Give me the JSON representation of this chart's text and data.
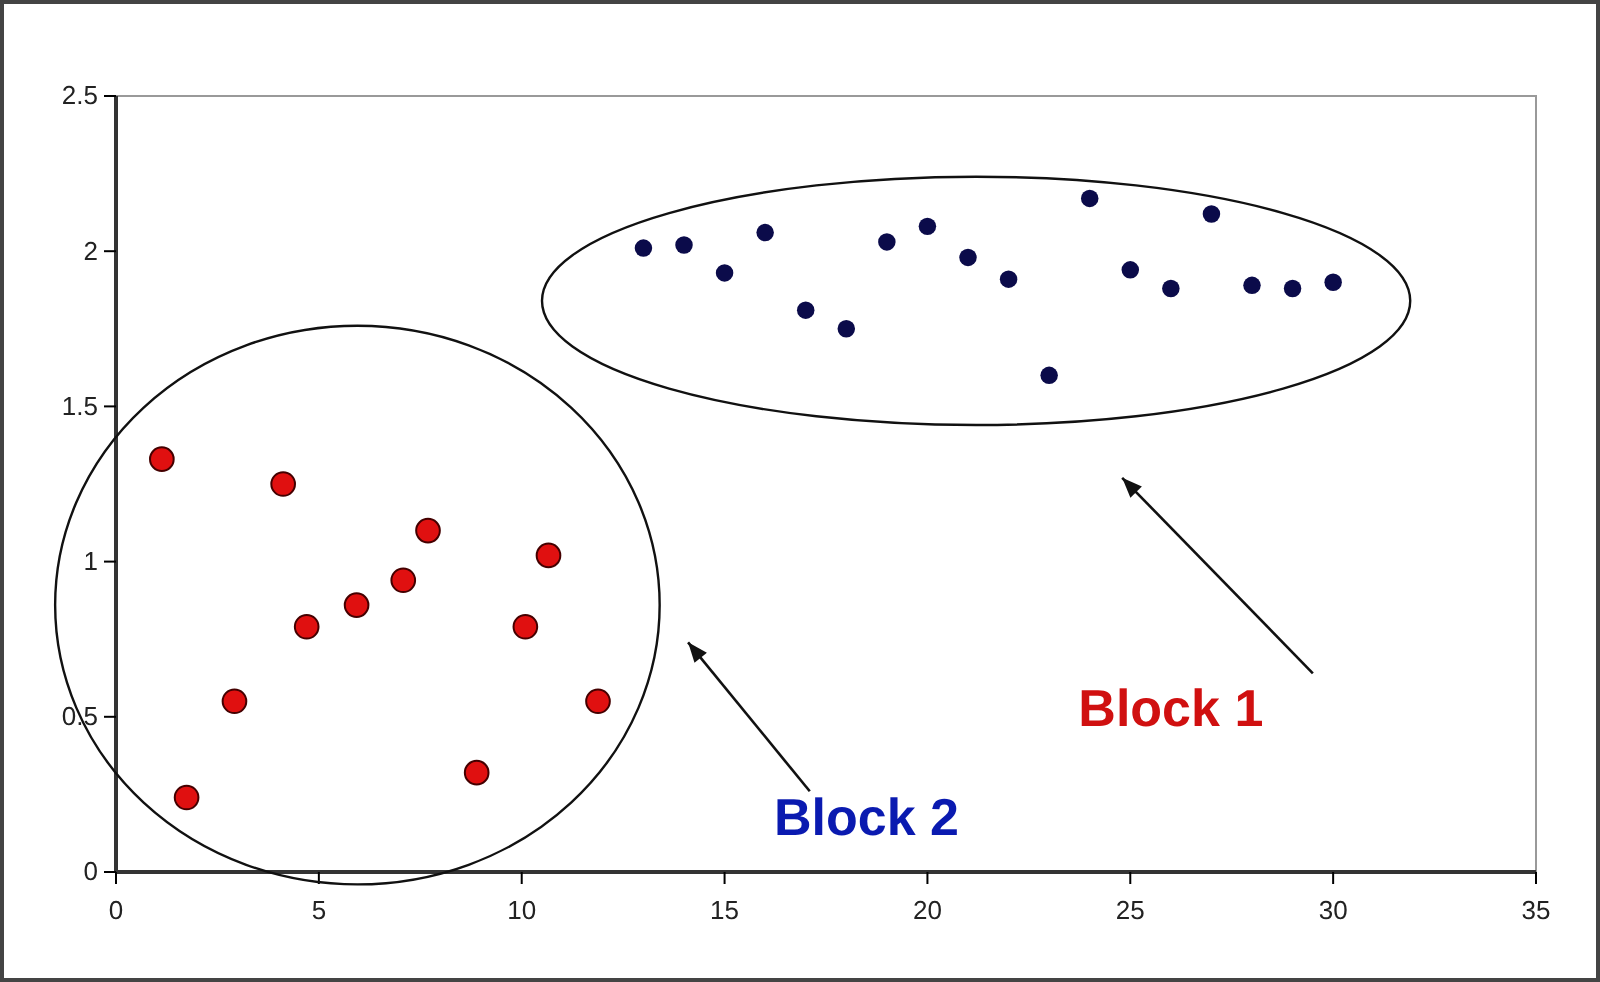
{
  "chart_data": {
    "type": "scatter",
    "marker": "circle",
    "grid": false,
    "xlim": [
      0,
      35
    ],
    "xticks": [
      0,
      5,
      10,
      15,
      20,
      25,
      30,
      35
    ],
    "ylim": [
      0,
      2.5
    ],
    "yticks": [
      0,
      0.5,
      1,
      1.5,
      2,
      2.5
    ],
    "series": [
      {
        "color": "#e01010",
        "x": [
          1.13,
          1.74,
          2.92,
          4.12,
          4.7,
          5.93,
          7.08,
          7.69,
          8.89,
          10.09,
          10.66,
          11.88
        ],
        "values": [
          1.33,
          0.24,
          0.55,
          1.25,
          0.79,
          0.86,
          0.94,
          1.1,
          0.32,
          0.79,
          1.02,
          0.55
        ]
      },
      {
        "color": "#0b0b4a",
        "x": [
          13,
          14,
          15,
          16,
          17,
          18,
          19,
          20,
          21,
          22,
          23,
          24,
          25,
          26,
          27,
          28,
          29,
          30
        ],
        "values": [
          2.01,
          2.02,
          1.93,
          2.06,
          1.81,
          1.75,
          2.03,
          2.08,
          1.98,
          1.91,
          1.6,
          2.17,
          1.94,
          1.88,
          2.12,
          1.89,
          1.88,
          1.9
        ]
      }
    ],
    "annotations": [
      "Block 1",
      "Block 2"
    ]
  }
}
